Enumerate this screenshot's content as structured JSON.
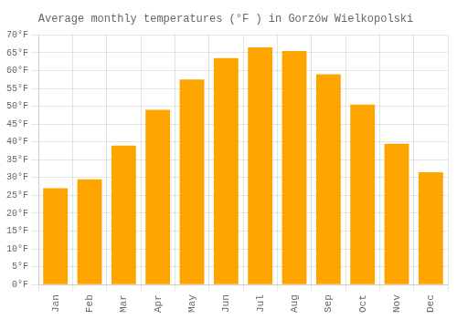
{
  "chart_data": {
    "type": "bar",
    "title": "Average monthly temperatures (°F ) in Gorzów Wielkopolski",
    "categories": [
      "Jan",
      "Feb",
      "Mar",
      "Apr",
      "May",
      "Jun",
      "Jul",
      "Aug",
      "Sep",
      "Oct",
      "Nov",
      "Dec"
    ],
    "values": [
      27,
      29.5,
      39,
      49,
      57.5,
      63.5,
      66.5,
      65.5,
      59,
      50.5,
      39.5,
      31.5
    ],
    "color": "#FFA500",
    "ylim": [
      0,
      70
    ],
    "yticks": [
      {
        "value": 0,
        "label": "0°F"
      },
      {
        "value": 5,
        "label": "5°F"
      },
      {
        "value": 10,
        "label": "10°F"
      },
      {
        "value": 15,
        "label": "15°F"
      },
      {
        "value": 20,
        "label": "20°F"
      },
      {
        "value": 25,
        "label": "25°F"
      },
      {
        "value": 30,
        "label": "30°F"
      },
      {
        "value": 35,
        "label": "35°F"
      },
      {
        "value": 40,
        "label": "40°F"
      },
      {
        "value": 45,
        "label": "45°F"
      },
      {
        "value": 50,
        "label": "50°F"
      },
      {
        "value": 55,
        "label": "55°F"
      },
      {
        "value": 60,
        "label": "60°F"
      },
      {
        "value": 65,
        "label": "65°F"
      },
      {
        "value": 70,
        "label": "70°F"
      }
    ],
    "grid": true
  }
}
